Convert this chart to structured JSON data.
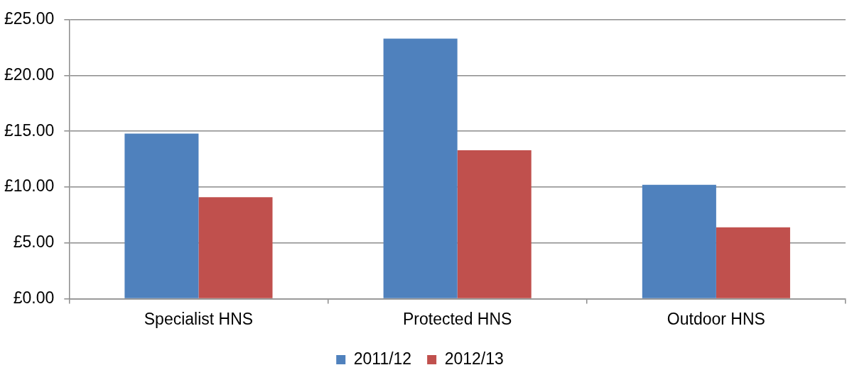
{
  "chart_data": {
    "type": "bar",
    "categories": [
      "Specialist HNS",
      "Protected HNS",
      "Outdoor HNS"
    ],
    "series": [
      {
        "name": "2011/12",
        "color": "#4f81bd",
        "values": [
          14.8,
          23.3,
          10.2
        ]
      },
      {
        "name": "2012/13",
        "color": "#c0504d",
        "values": [
          9.1,
          13.3,
          6.4
        ]
      }
    ],
    "ylim": [
      0,
      25
    ],
    "yticks": [
      {
        "value": 0,
        "label": "£0.00"
      },
      {
        "value": 5,
        "label": "£5.00"
      },
      {
        "value": 10,
        "label": "£10.00"
      },
      {
        "value": 15,
        "label": "£15.00"
      },
      {
        "value": 20,
        "label": "£20.00"
      },
      {
        "value": 25,
        "label": "£25.00"
      }
    ],
    "grid": "y",
    "legend": "bottom"
  }
}
